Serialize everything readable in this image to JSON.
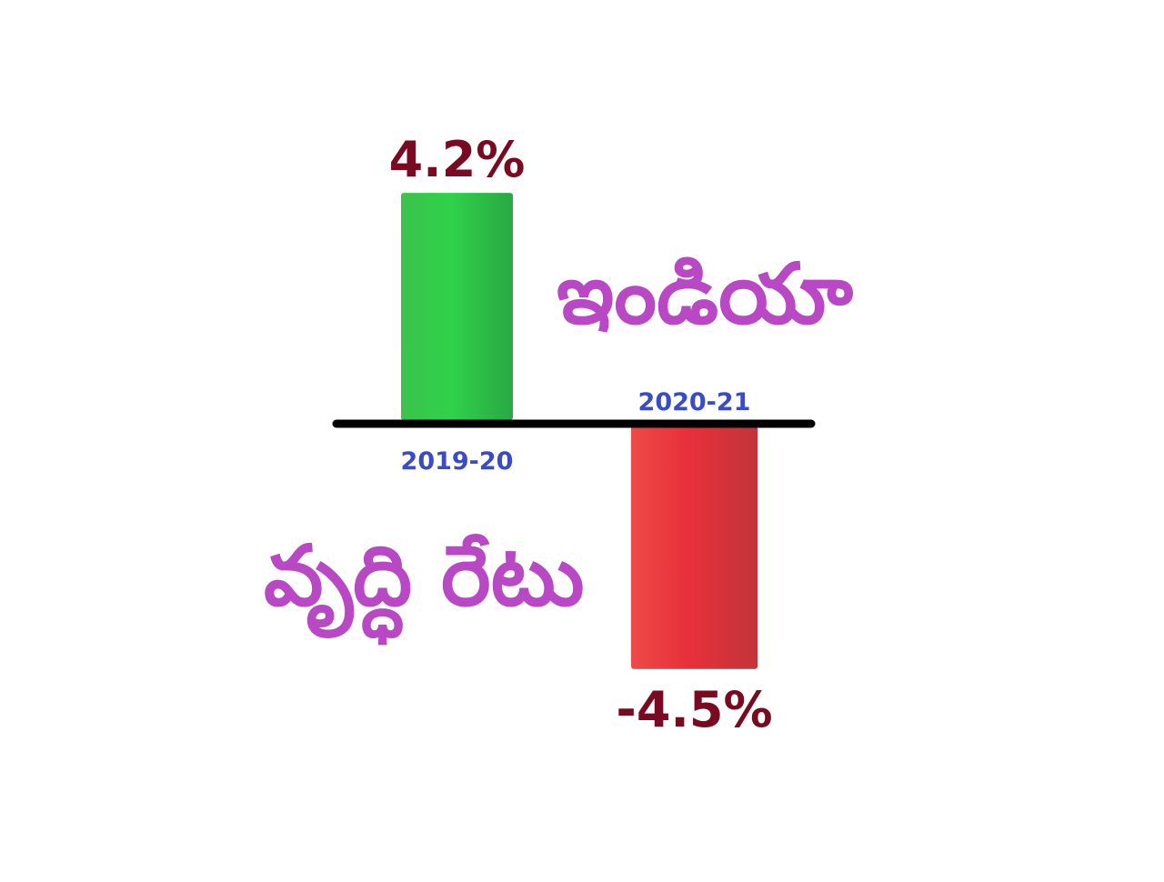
{
  "title_lines": [
    "ఇండియా",
    "వృద్ధి రేటు"
  ],
  "colors": {
    "positive_bar": "#2fd14a",
    "negative_bar": "#e8303a",
    "value_label": "#7a0a22",
    "category_label": "#3a4cc4",
    "baseline": "#000000",
    "title": "#b848c4"
  },
  "chart_data": {
    "type": "bar",
    "title": "ఇండియా వృద్ధి రేటు",
    "categories": [
      "2019-20",
      "2020-21"
    ],
    "values": [
      4.2,
      -4.5
    ],
    "value_labels": [
      "4.2%",
      "-4.5%"
    ],
    "unit": "%",
    "ylim": [
      -4.5,
      4.2
    ],
    "grid": false,
    "legend": "none"
  }
}
